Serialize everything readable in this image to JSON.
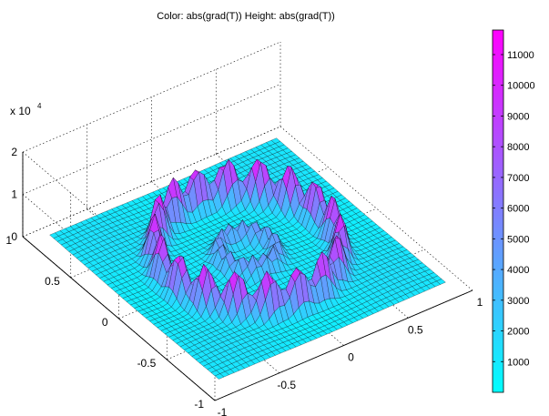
{
  "chart_data": {
    "type": "surface",
    "title": "Color: abs(grad(T))  Height: abs(grad(T))",
    "x_ticks": [
      "-1",
      "-0.5",
      "0",
      "0.5",
      "1"
    ],
    "y_ticks": [
      "-1",
      "-0.5",
      "0",
      "0.5",
      "1"
    ],
    "z_ticks": [
      "0",
      "1",
      "2"
    ],
    "z_exponent_label": "x 10",
    "z_exponent_power": "4",
    "xlim": [
      -1,
      1
    ],
    "ylim": [
      -1,
      1
    ],
    "zlim": [
      0,
      2
    ],
    "z_scale": 10000,
    "grid": true,
    "colormap": "cool",
    "colormap_colors": [
      "#00ffff",
      "#ff00ff"
    ],
    "mesh_color": "#000000",
    "colorbar": {
      "min": 0,
      "max": 11800,
      "ticks": [
        "1000",
        "2000",
        "3000",
        "4000",
        "5000",
        "6000",
        "7000",
        "8000",
        "9000",
        "10000",
        "11000"
      ],
      "placement": "right"
    },
    "surface_features": {
      "base_level": 1000,
      "ring_radii": [
        0.18,
        0.58
      ],
      "ring_peak_values": [
        6000,
        11800
      ]
    }
  }
}
